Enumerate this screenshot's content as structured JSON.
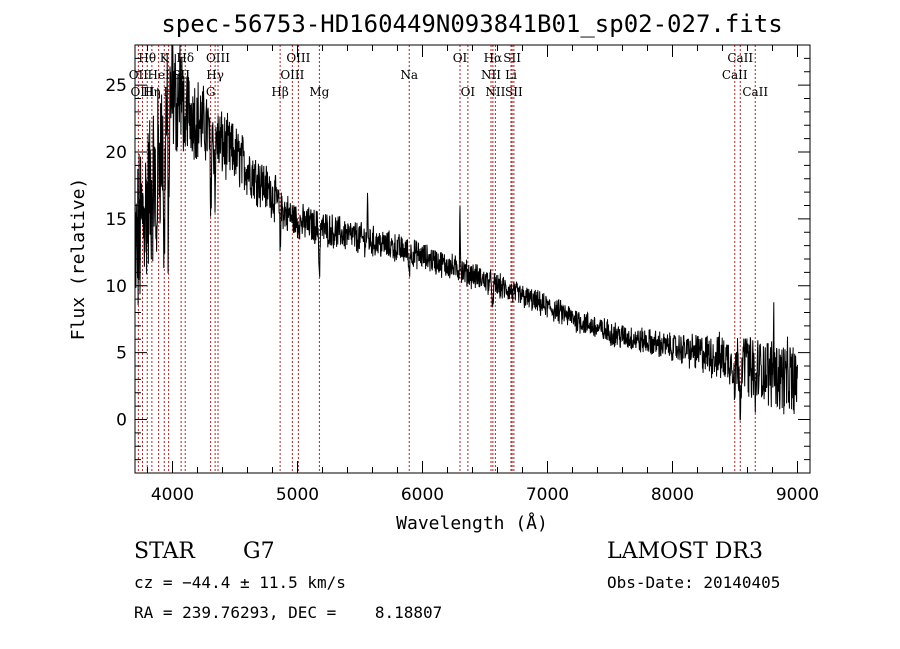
{
  "chart_data": {
    "type": "line",
    "title": "spec-56753-HD160449N093841B01_sp02-027.fits",
    "xlabel": "Wavelength (Å)",
    "ylabel": "Flux (relative)",
    "xlim": [
      3700,
      9100
    ],
    "ylim": [
      -4,
      28
    ],
    "x_ticks": [
      4000,
      5000,
      6000,
      7000,
      8000,
      9000
    ],
    "x_tick_labels": [
      "4000",
      "5000",
      "6000",
      "7000",
      "8000",
      "9000"
    ],
    "y_ticks": [
      0,
      5,
      10,
      15,
      20,
      25
    ],
    "y_tick_labels": [
      "0",
      "5",
      "10",
      "15",
      "20",
      "25"
    ],
    "continuum": [
      [
        3700,
        12
      ],
      [
        3760,
        15
      ],
      [
        3850,
        18
      ],
      [
        3950,
        22
      ],
      [
        4000,
        24
      ],
      [
        4100,
        23.5
      ],
      [
        4200,
        22.5
      ],
      [
        4300,
        21.5
      ],
      [
        4400,
        20.5
      ],
      [
        4500,
        19.8
      ],
      [
        4600,
        18.8
      ],
      [
        4700,
        17.8
      ],
      [
        4800,
        16.8
      ],
      [
        4900,
        15.5
      ],
      [
        5000,
        14.8
      ],
      [
        5200,
        14.3
      ],
      [
        5400,
        13.8
      ],
      [
        5600,
        13.3
      ],
      [
        5800,
        12.8
      ],
      [
        6000,
        12.2
      ],
      [
        6200,
        11.5
      ],
      [
        6400,
        10.8
      ],
      [
        6600,
        10.0
      ],
      [
        6800,
        9.2
      ],
      [
        7000,
        8.4
      ],
      [
        7200,
        7.6
      ],
      [
        7400,
        6.8
      ],
      [
        7600,
        6.2
      ],
      [
        7800,
        5.8
      ],
      [
        8000,
        5.4
      ],
      [
        8200,
        5.0
      ],
      [
        8400,
        4.6
      ],
      [
        8600,
        4.0
      ],
      [
        8800,
        3.5
      ],
      [
        9000,
        2.8
      ]
    ],
    "noise_amplitude": [
      [
        3700,
        6.0
      ],
      [
        3950,
        5.0
      ],
      [
        4100,
        3.0
      ],
      [
        4500,
        2.0
      ],
      [
        5000,
        1.2
      ],
      [
        6000,
        0.9
      ],
      [
        7000,
        0.8
      ],
      [
        8000,
        0.9
      ],
      [
        8500,
        1.8
      ],
      [
        9000,
        2.6
      ]
    ],
    "features": [
      {
        "x": 3870,
        "depth": 6
      },
      {
        "x": 3933,
        "depth": 10
      },
      {
        "x": 3968,
        "depth": 9
      },
      {
        "x": 4102,
        "depth": 5
      },
      {
        "x": 4305,
        "depth": 6
      },
      {
        "x": 4340,
        "depth": 4
      },
      {
        "x": 4861,
        "depth": 3
      },
      {
        "x": 5175,
        "depth": 3.5
      },
      {
        "x": 5893,
        "depth": 1.5
      },
      {
        "x": 6563,
        "depth": 2
      },
      {
        "x": 8498,
        "depth": 2.5
      },
      {
        "x": 8542,
        "depth": 3
      },
      {
        "x": 8662,
        "depth": 3
      }
    ],
    "spikes": [
      {
        "x": 4000,
        "height": 4
      },
      {
        "x": 4060,
        "height": 3
      },
      {
        "x": 5560,
        "height": 3
      },
      {
        "x": 6300,
        "height": 5
      },
      {
        "x": 8590,
        "height": 3
      },
      {
        "x": 8810,
        "height": 4
      }
    ],
    "spectral_lines": [
      {
        "label": "Hθ",
        "x": 3798,
        "row": 0
      },
      {
        "label": "OII",
        "x": 3727,
        "row": 1
      },
      {
        "label": "OIII",
        "x": 3760,
        "row": 2
      },
      {
        "label": "Hη",
        "x": 3835,
        "row": 2
      },
      {
        "label": "HeI",
        "x": 3889,
        "row": 1
      },
      {
        "label": "K",
        "x": 3934,
        "row": 0
      },
      {
        "label": "H",
        "x": 3969,
        "row": 2
      },
      {
        "label": "SII",
        "x": 4069,
        "row": 1
      },
      {
        "label": "Hδ",
        "x": 4102,
        "row": 0
      },
      {
        "label": "OIII",
        "x": 4364,
        "row": 0
      },
      {
        "label": "Hγ",
        "x": 4341,
        "row": 1
      },
      {
        "label": "G",
        "x": 4305,
        "row": 2
      },
      {
        "label": "Hβ",
        "x": 4861,
        "row": 2
      },
      {
        "label": "OIII",
        "x": 5007,
        "row": 0
      },
      {
        "label": "OIII",
        "x": 4959,
        "row": 1
      },
      {
        "label": "Mg",
        "x": 5175,
        "row": 2
      },
      {
        "label": "Na",
        "x": 5894,
        "row": 1
      },
      {
        "label": "OI",
        "x": 6300,
        "row": 0
      },
      {
        "label": "OI",
        "x": 6363,
        "row": 2
      },
      {
        "label": "Hα",
        "x": 6563,
        "row": 0
      },
      {
        "label": "NII",
        "x": 6548,
        "row": 1
      },
      {
        "label": "NII",
        "x": 6583,
        "row": 2
      },
      {
        "label": "SII",
        "x": 6717,
        "row": 0
      },
      {
        "label": "Li",
        "x": 6708,
        "row": 1
      },
      {
        "label": "SII",
        "x": 6731,
        "row": 2
      },
      {
        "label": "CaII",
        "x": 8542,
        "row": 0
      },
      {
        "label": "CaII",
        "x": 8498,
        "row": 1
      },
      {
        "label": "CaII",
        "x": 8662,
        "row": 2
      }
    ]
  },
  "footer": {
    "object_class": "STAR",
    "subclass": "G7",
    "survey": "LAMOST DR3",
    "redshift": "cz = −44.4 ± 11.5 km/s",
    "obs_date": "Obs-Date: 20140405",
    "coords": "RA = 239.76293, DEC =    8.18807"
  },
  "colors": {
    "line": "#000000",
    "marker": "#b22222",
    "axis": "#000000"
  }
}
